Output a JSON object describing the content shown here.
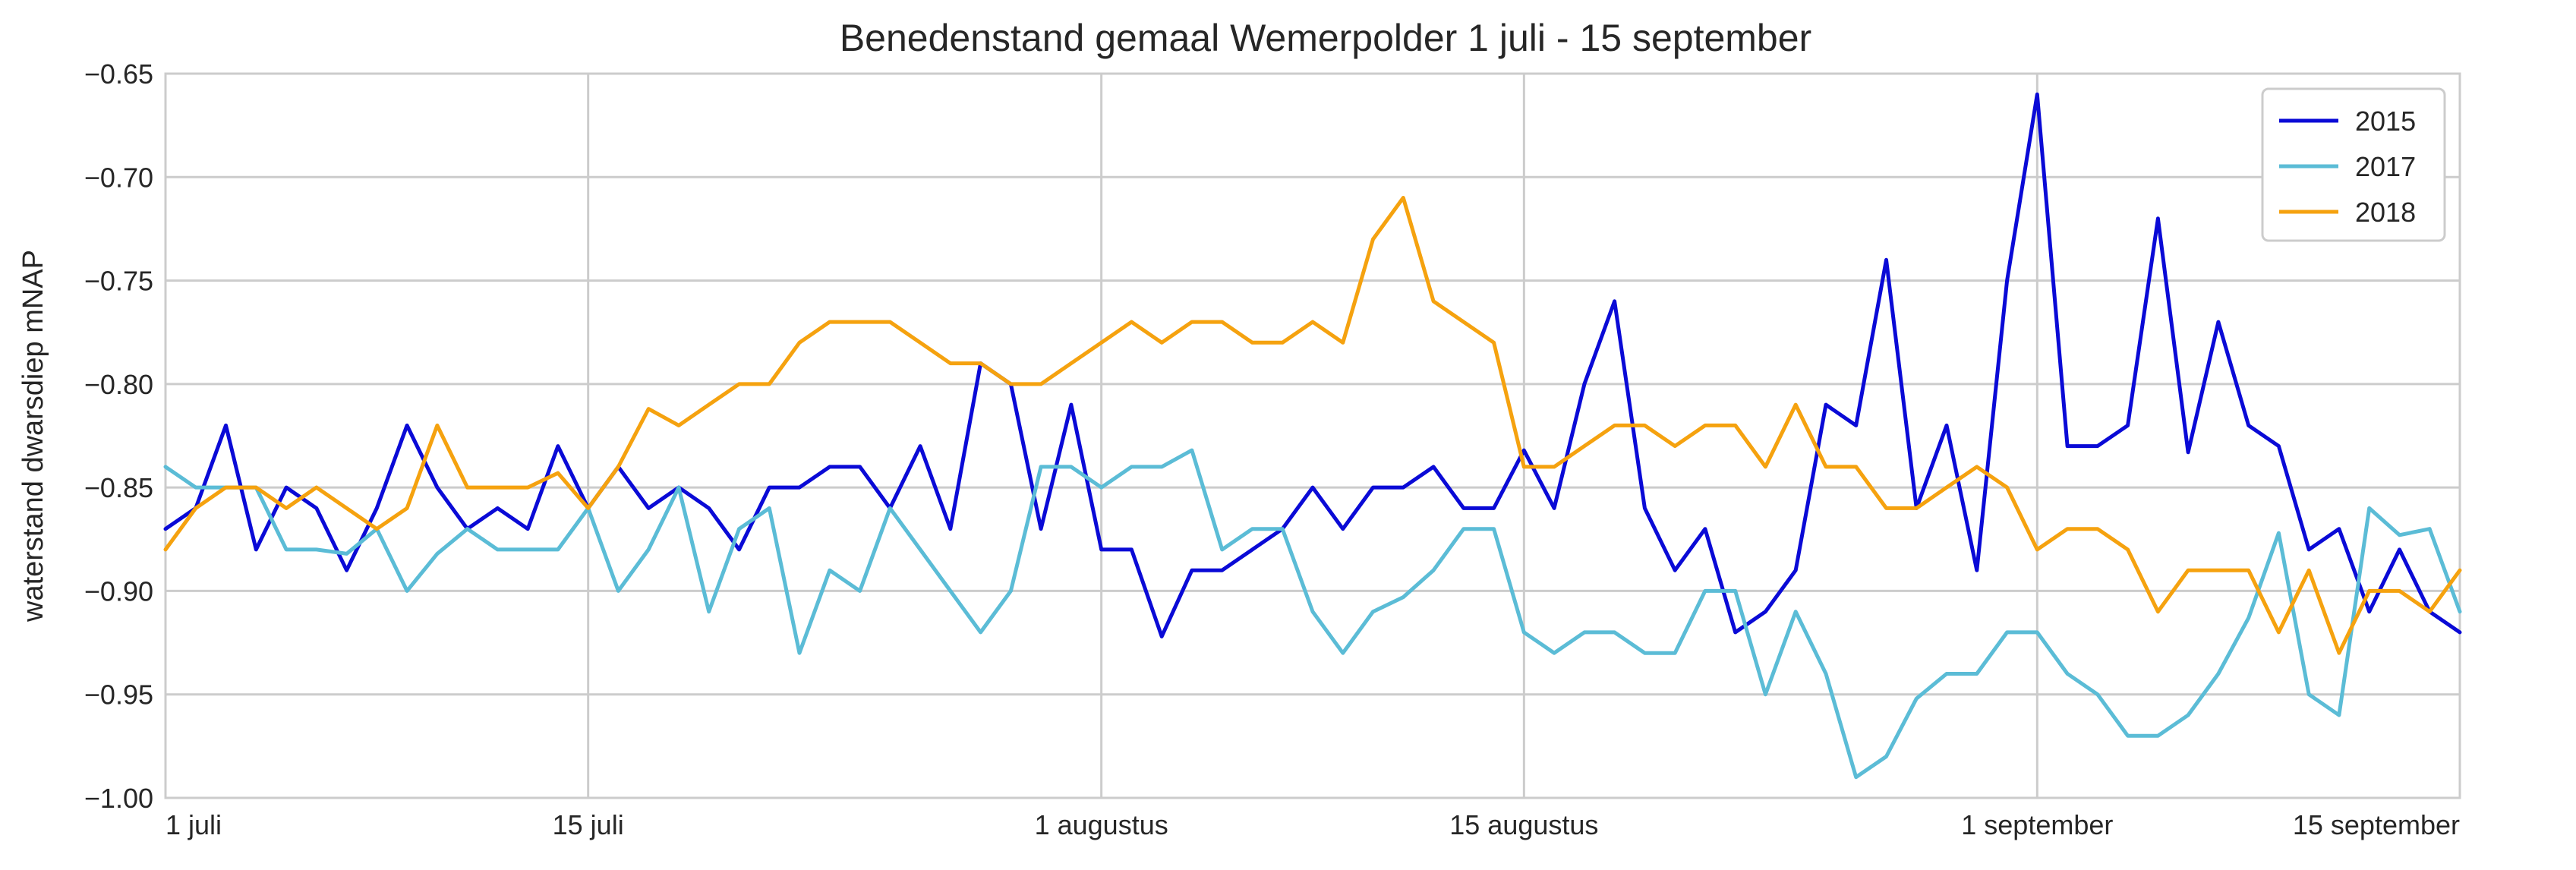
{
  "chart_data": {
    "type": "line",
    "title": "Benedenstand gemaal Wemerpolder 1 juli - 15 september",
    "xlabel": "",
    "ylabel": "waterstand dwarsdiep mNAP",
    "xlim": [
      "2018-07-01",
      "2018-09-15"
    ],
    "ylim": [
      -1.0,
      -0.65
    ],
    "x_ticks": [
      {
        "date": "2018-07-01",
        "label": "1 juli"
      },
      {
        "date": "2018-07-15",
        "label": "15 juli"
      },
      {
        "date": "2018-08-01",
        "label": "1 augustus"
      },
      {
        "date": "2018-08-15",
        "label": "15 augustus"
      },
      {
        "date": "2018-09-01",
        "label": "1 september"
      },
      {
        "date": "2018-09-15",
        "label": "15 september"
      }
    ],
    "y_ticks": [
      -1.0,
      -0.95,
      -0.9,
      -0.85,
      -0.8,
      -0.75,
      -0.7,
      -0.65
    ],
    "y_tick_labels": [
      "−1.00",
      "−0.95",
      "−0.90",
      "−0.85",
      "−0.80",
      "−0.75",
      "−0.70",
      "−0.65"
    ],
    "grid": true,
    "legend_position": "top-right",
    "series": [
      {
        "name": "2015",
        "color": "#0a0ad6",
        "points": [
          [
            "2018-07-01",
            -0.87
          ],
          [
            "2018-07-02",
            -0.86
          ],
          [
            "2018-07-03",
            -0.82
          ],
          [
            "2018-07-04",
            -0.88
          ],
          [
            "2018-07-05",
            -0.85
          ],
          [
            "2018-07-06",
            -0.86
          ],
          [
            "2018-07-07",
            -0.89
          ],
          [
            "2018-07-08",
            -0.86
          ],
          [
            "2018-07-09",
            -0.82
          ],
          [
            "2018-07-10",
            -0.85
          ],
          [
            "2018-07-11",
            -0.87
          ],
          [
            "2018-07-12",
            -0.86
          ],
          [
            "2018-07-13",
            -0.87
          ],
          [
            "2018-07-14",
            -0.83
          ],
          [
            "2018-07-15",
            -0.86
          ],
          [
            "2018-07-16",
            -0.84
          ],
          [
            "2018-07-17",
            -0.86
          ],
          [
            "2018-07-18",
            -0.85
          ],
          [
            "2018-07-19",
            -0.86
          ],
          [
            "2018-07-20",
            -0.88
          ],
          [
            "2018-07-21",
            -0.85
          ],
          [
            "2018-07-22",
            -0.85
          ],
          [
            "2018-07-23",
            -0.84
          ],
          [
            "2018-07-24",
            -0.84
          ],
          [
            "2018-07-25",
            -0.86
          ],
          [
            "2018-07-26",
            -0.83
          ],
          [
            "2018-07-27",
            -0.87
          ],
          [
            "2018-07-28",
            -0.79
          ],
          [
            "2018-07-29",
            -0.8
          ],
          [
            "2018-07-30",
            -0.87
          ],
          [
            "2018-07-31",
            -0.81
          ],
          [
            "2018-08-01",
            -0.88
          ],
          [
            "2018-08-02",
            -0.88
          ],
          [
            "2018-08-03",
            -0.922
          ],
          [
            "2018-08-04",
            -0.89
          ],
          [
            "2018-08-05",
            -0.89
          ],
          [
            "2018-08-06",
            -0.88
          ],
          [
            "2018-08-07",
            -0.87
          ],
          [
            "2018-08-08",
            -0.85
          ],
          [
            "2018-08-09",
            -0.87
          ],
          [
            "2018-08-10",
            -0.85
          ],
          [
            "2018-08-11",
            -0.85
          ],
          [
            "2018-08-12",
            -0.84
          ],
          [
            "2018-08-13",
            -0.86
          ],
          [
            "2018-08-14",
            -0.86
          ],
          [
            "2018-08-15",
            -0.832
          ],
          [
            "2018-08-16",
            -0.86
          ],
          [
            "2018-08-17",
            -0.8
          ],
          [
            "2018-08-18",
            -0.76
          ],
          [
            "2018-08-19",
            -0.86
          ],
          [
            "2018-08-20",
            -0.89
          ],
          [
            "2018-08-21",
            -0.87
          ],
          [
            "2018-08-22",
            -0.92
          ],
          [
            "2018-08-23",
            -0.91
          ],
          [
            "2018-08-24",
            -0.89
          ],
          [
            "2018-08-25",
            -0.81
          ],
          [
            "2018-08-26",
            -0.82
          ],
          [
            "2018-08-27",
            -0.74
          ],
          [
            "2018-08-28",
            -0.86
          ],
          [
            "2018-08-29",
            -0.82
          ],
          [
            "2018-08-30",
            -0.89
          ],
          [
            "2018-08-31",
            -0.75
          ],
          [
            "2018-09-01",
            -0.66
          ],
          [
            "2018-09-02",
            -0.83
          ],
          [
            "2018-09-03",
            -0.83
          ],
          [
            "2018-09-04",
            -0.82
          ],
          [
            "2018-09-05",
            -0.72
          ],
          [
            "2018-09-06",
            -0.833
          ],
          [
            "2018-09-07",
            -0.77
          ],
          [
            "2018-09-08",
            -0.82
          ],
          [
            "2018-09-09",
            -0.83
          ],
          [
            "2018-09-10",
            -0.88
          ],
          [
            "2018-09-11",
            -0.87
          ],
          [
            "2018-09-12",
            -0.91
          ],
          [
            "2018-09-13",
            -0.88
          ],
          [
            "2018-09-14",
            -0.91
          ],
          [
            "2018-09-15",
            -0.92
          ]
        ]
      },
      {
        "name": "2017",
        "color": "#5bbcd6",
        "points": [
          [
            "2018-07-01",
            -0.84
          ],
          [
            "2018-07-02",
            -0.85
          ],
          [
            "2018-07-03",
            -0.85
          ],
          [
            "2018-07-04",
            -0.85
          ],
          [
            "2018-07-05",
            -0.88
          ],
          [
            "2018-07-06",
            -0.88
          ],
          [
            "2018-07-07",
            -0.882
          ],
          [
            "2018-07-08",
            -0.87
          ],
          [
            "2018-07-09",
            -0.9
          ],
          [
            "2018-07-10",
            -0.882
          ],
          [
            "2018-07-11",
            -0.87
          ],
          [
            "2018-07-12",
            -0.88
          ],
          [
            "2018-07-13",
            -0.88
          ],
          [
            "2018-07-14",
            -0.88
          ],
          [
            "2018-07-15",
            -0.86
          ],
          [
            "2018-07-16",
            -0.9
          ],
          [
            "2018-07-17",
            -0.88
          ],
          [
            "2018-07-18",
            -0.85
          ],
          [
            "2018-07-19",
            -0.91
          ],
          [
            "2018-07-20",
            -0.87
          ],
          [
            "2018-07-21",
            -0.86
          ],
          [
            "2018-07-22",
            -0.93
          ],
          [
            "2018-07-23",
            -0.89
          ],
          [
            "2018-07-24",
            -0.9
          ],
          [
            "2018-07-25",
            -0.86
          ],
          [
            "2018-07-26",
            -0.88
          ],
          [
            "2018-07-27",
            -0.9
          ],
          [
            "2018-07-28",
            -0.92
          ],
          [
            "2018-07-29",
            -0.9
          ],
          [
            "2018-07-30",
            -0.84
          ],
          [
            "2018-07-31",
            -0.84
          ],
          [
            "2018-08-01",
            -0.85
          ],
          [
            "2018-08-02",
            -0.84
          ],
          [
            "2018-08-03",
            -0.84
          ],
          [
            "2018-08-04",
            -0.832
          ],
          [
            "2018-08-05",
            -0.88
          ],
          [
            "2018-08-06",
            -0.87
          ],
          [
            "2018-08-07",
            -0.87
          ],
          [
            "2018-08-08",
            -0.91
          ],
          [
            "2018-08-09",
            -0.93
          ],
          [
            "2018-08-10",
            -0.91
          ],
          [
            "2018-08-11",
            -0.903
          ],
          [
            "2018-08-12",
            -0.89
          ],
          [
            "2018-08-13",
            -0.87
          ],
          [
            "2018-08-14",
            -0.87
          ],
          [
            "2018-08-15",
            -0.92
          ],
          [
            "2018-08-16",
            -0.93
          ],
          [
            "2018-08-17",
            -0.92
          ],
          [
            "2018-08-18",
            -0.92
          ],
          [
            "2018-08-19",
            -0.93
          ],
          [
            "2018-08-20",
            -0.93
          ],
          [
            "2018-08-21",
            -0.9
          ],
          [
            "2018-08-22",
            -0.9
          ],
          [
            "2018-08-23",
            -0.95
          ],
          [
            "2018-08-24",
            -0.91
          ],
          [
            "2018-08-25",
            -0.94
          ],
          [
            "2018-08-26",
            -0.99
          ],
          [
            "2018-08-27",
            -0.98
          ],
          [
            "2018-08-28",
            -0.952
          ],
          [
            "2018-08-29",
            -0.94
          ],
          [
            "2018-08-30",
            -0.94
          ],
          [
            "2018-08-31",
            -0.92
          ],
          [
            "2018-09-01",
            -0.92
          ],
          [
            "2018-09-02",
            -0.94
          ],
          [
            "2018-09-03",
            -0.95
          ],
          [
            "2018-09-04",
            -0.97
          ],
          [
            "2018-09-05",
            -0.97
          ],
          [
            "2018-09-06",
            -0.96
          ],
          [
            "2018-09-07",
            -0.94
          ],
          [
            "2018-09-08",
            -0.913
          ],
          [
            "2018-09-09",
            -0.872
          ],
          [
            "2018-09-10",
            -0.95
          ],
          [
            "2018-09-11",
            -0.96
          ],
          [
            "2018-09-12",
            -0.86
          ],
          [
            "2018-09-13",
            -0.873
          ],
          [
            "2018-09-14",
            -0.87
          ],
          [
            "2018-09-15",
            -0.91
          ]
        ]
      },
      {
        "name": "2018",
        "color": "#f5a20f",
        "points": [
          [
            "2018-07-01",
            -0.88
          ],
          [
            "2018-07-02",
            -0.86
          ],
          [
            "2018-07-03",
            -0.85
          ],
          [
            "2018-07-04",
            -0.85
          ],
          [
            "2018-07-05",
            -0.86
          ],
          [
            "2018-07-06",
            -0.85
          ],
          [
            "2018-07-07",
            -0.86
          ],
          [
            "2018-07-08",
            -0.87
          ],
          [
            "2018-07-09",
            -0.86
          ],
          [
            "2018-07-10",
            -0.82
          ],
          [
            "2018-07-11",
            -0.85
          ],
          [
            "2018-07-12",
            -0.85
          ],
          [
            "2018-07-13",
            -0.85
          ],
          [
            "2018-07-14",
            -0.843
          ],
          [
            "2018-07-15",
            -0.86
          ],
          [
            "2018-07-16",
            -0.84
          ],
          [
            "2018-07-17",
            -0.812
          ],
          [
            "2018-07-18",
            -0.82
          ],
          [
            "2018-07-19",
            -0.81
          ],
          [
            "2018-07-20",
            -0.8
          ],
          [
            "2018-07-21",
            -0.8
          ],
          [
            "2018-07-22",
            -0.78
          ],
          [
            "2018-07-23",
            -0.77
          ],
          [
            "2018-07-24",
            -0.77
          ],
          [
            "2018-07-25",
            -0.77
          ],
          [
            "2018-07-26",
            -0.78
          ],
          [
            "2018-07-27",
            -0.79
          ],
          [
            "2018-07-28",
            -0.79
          ],
          [
            "2018-07-29",
            -0.8
          ],
          [
            "2018-07-30",
            -0.8
          ],
          [
            "2018-07-31",
            -0.79
          ],
          [
            "2018-08-01",
            -0.78
          ],
          [
            "2018-08-02",
            -0.77
          ],
          [
            "2018-08-03",
            -0.78
          ],
          [
            "2018-08-04",
            -0.77
          ],
          [
            "2018-08-05",
            -0.77
          ],
          [
            "2018-08-06",
            -0.78
          ],
          [
            "2018-08-07",
            -0.78
          ],
          [
            "2018-08-08",
            -0.77
          ],
          [
            "2018-08-09",
            -0.78
          ],
          [
            "2018-08-10",
            -0.73
          ],
          [
            "2018-08-11",
            -0.71
          ],
          [
            "2018-08-12",
            -0.76
          ],
          [
            "2018-08-13",
            -0.77
          ],
          [
            "2018-08-14",
            -0.78
          ],
          [
            "2018-08-15",
            -0.84
          ],
          [
            "2018-08-16",
            -0.84
          ],
          [
            "2018-08-17",
            -0.83
          ],
          [
            "2018-08-18",
            -0.82
          ],
          [
            "2018-08-19",
            -0.82
          ],
          [
            "2018-08-20",
            -0.83
          ],
          [
            "2018-08-21",
            -0.82
          ],
          [
            "2018-08-22",
            -0.82
          ],
          [
            "2018-08-23",
            -0.84
          ],
          [
            "2018-08-24",
            -0.81
          ],
          [
            "2018-08-25",
            -0.84
          ],
          [
            "2018-08-26",
            -0.84
          ],
          [
            "2018-08-27",
            -0.86
          ],
          [
            "2018-08-28",
            -0.86
          ],
          [
            "2018-08-29",
            -0.85
          ],
          [
            "2018-08-30",
            -0.84
          ],
          [
            "2018-08-31",
            -0.85
          ],
          [
            "2018-09-01",
            -0.88
          ],
          [
            "2018-09-02",
            -0.87
          ],
          [
            "2018-09-03",
            -0.87
          ],
          [
            "2018-09-04",
            -0.88
          ],
          [
            "2018-09-05",
            -0.91
          ],
          [
            "2018-09-06",
            -0.89
          ],
          [
            "2018-09-07",
            -0.89
          ],
          [
            "2018-09-08",
            -0.89
          ],
          [
            "2018-09-09",
            -0.92
          ],
          [
            "2018-09-10",
            -0.89
          ],
          [
            "2018-09-11",
            -0.93
          ],
          [
            "2018-09-12",
            -0.9
          ],
          [
            "2018-09-13",
            -0.9
          ],
          [
            "2018-09-14",
            -0.91
          ],
          [
            "2018-09-15",
            -0.89
          ]
        ]
      }
    ]
  },
  "colors": {
    "grid": "#cccccc",
    "axes_frame": "#cccccc",
    "text": "#262626",
    "legend_border": "#cccccc"
  }
}
